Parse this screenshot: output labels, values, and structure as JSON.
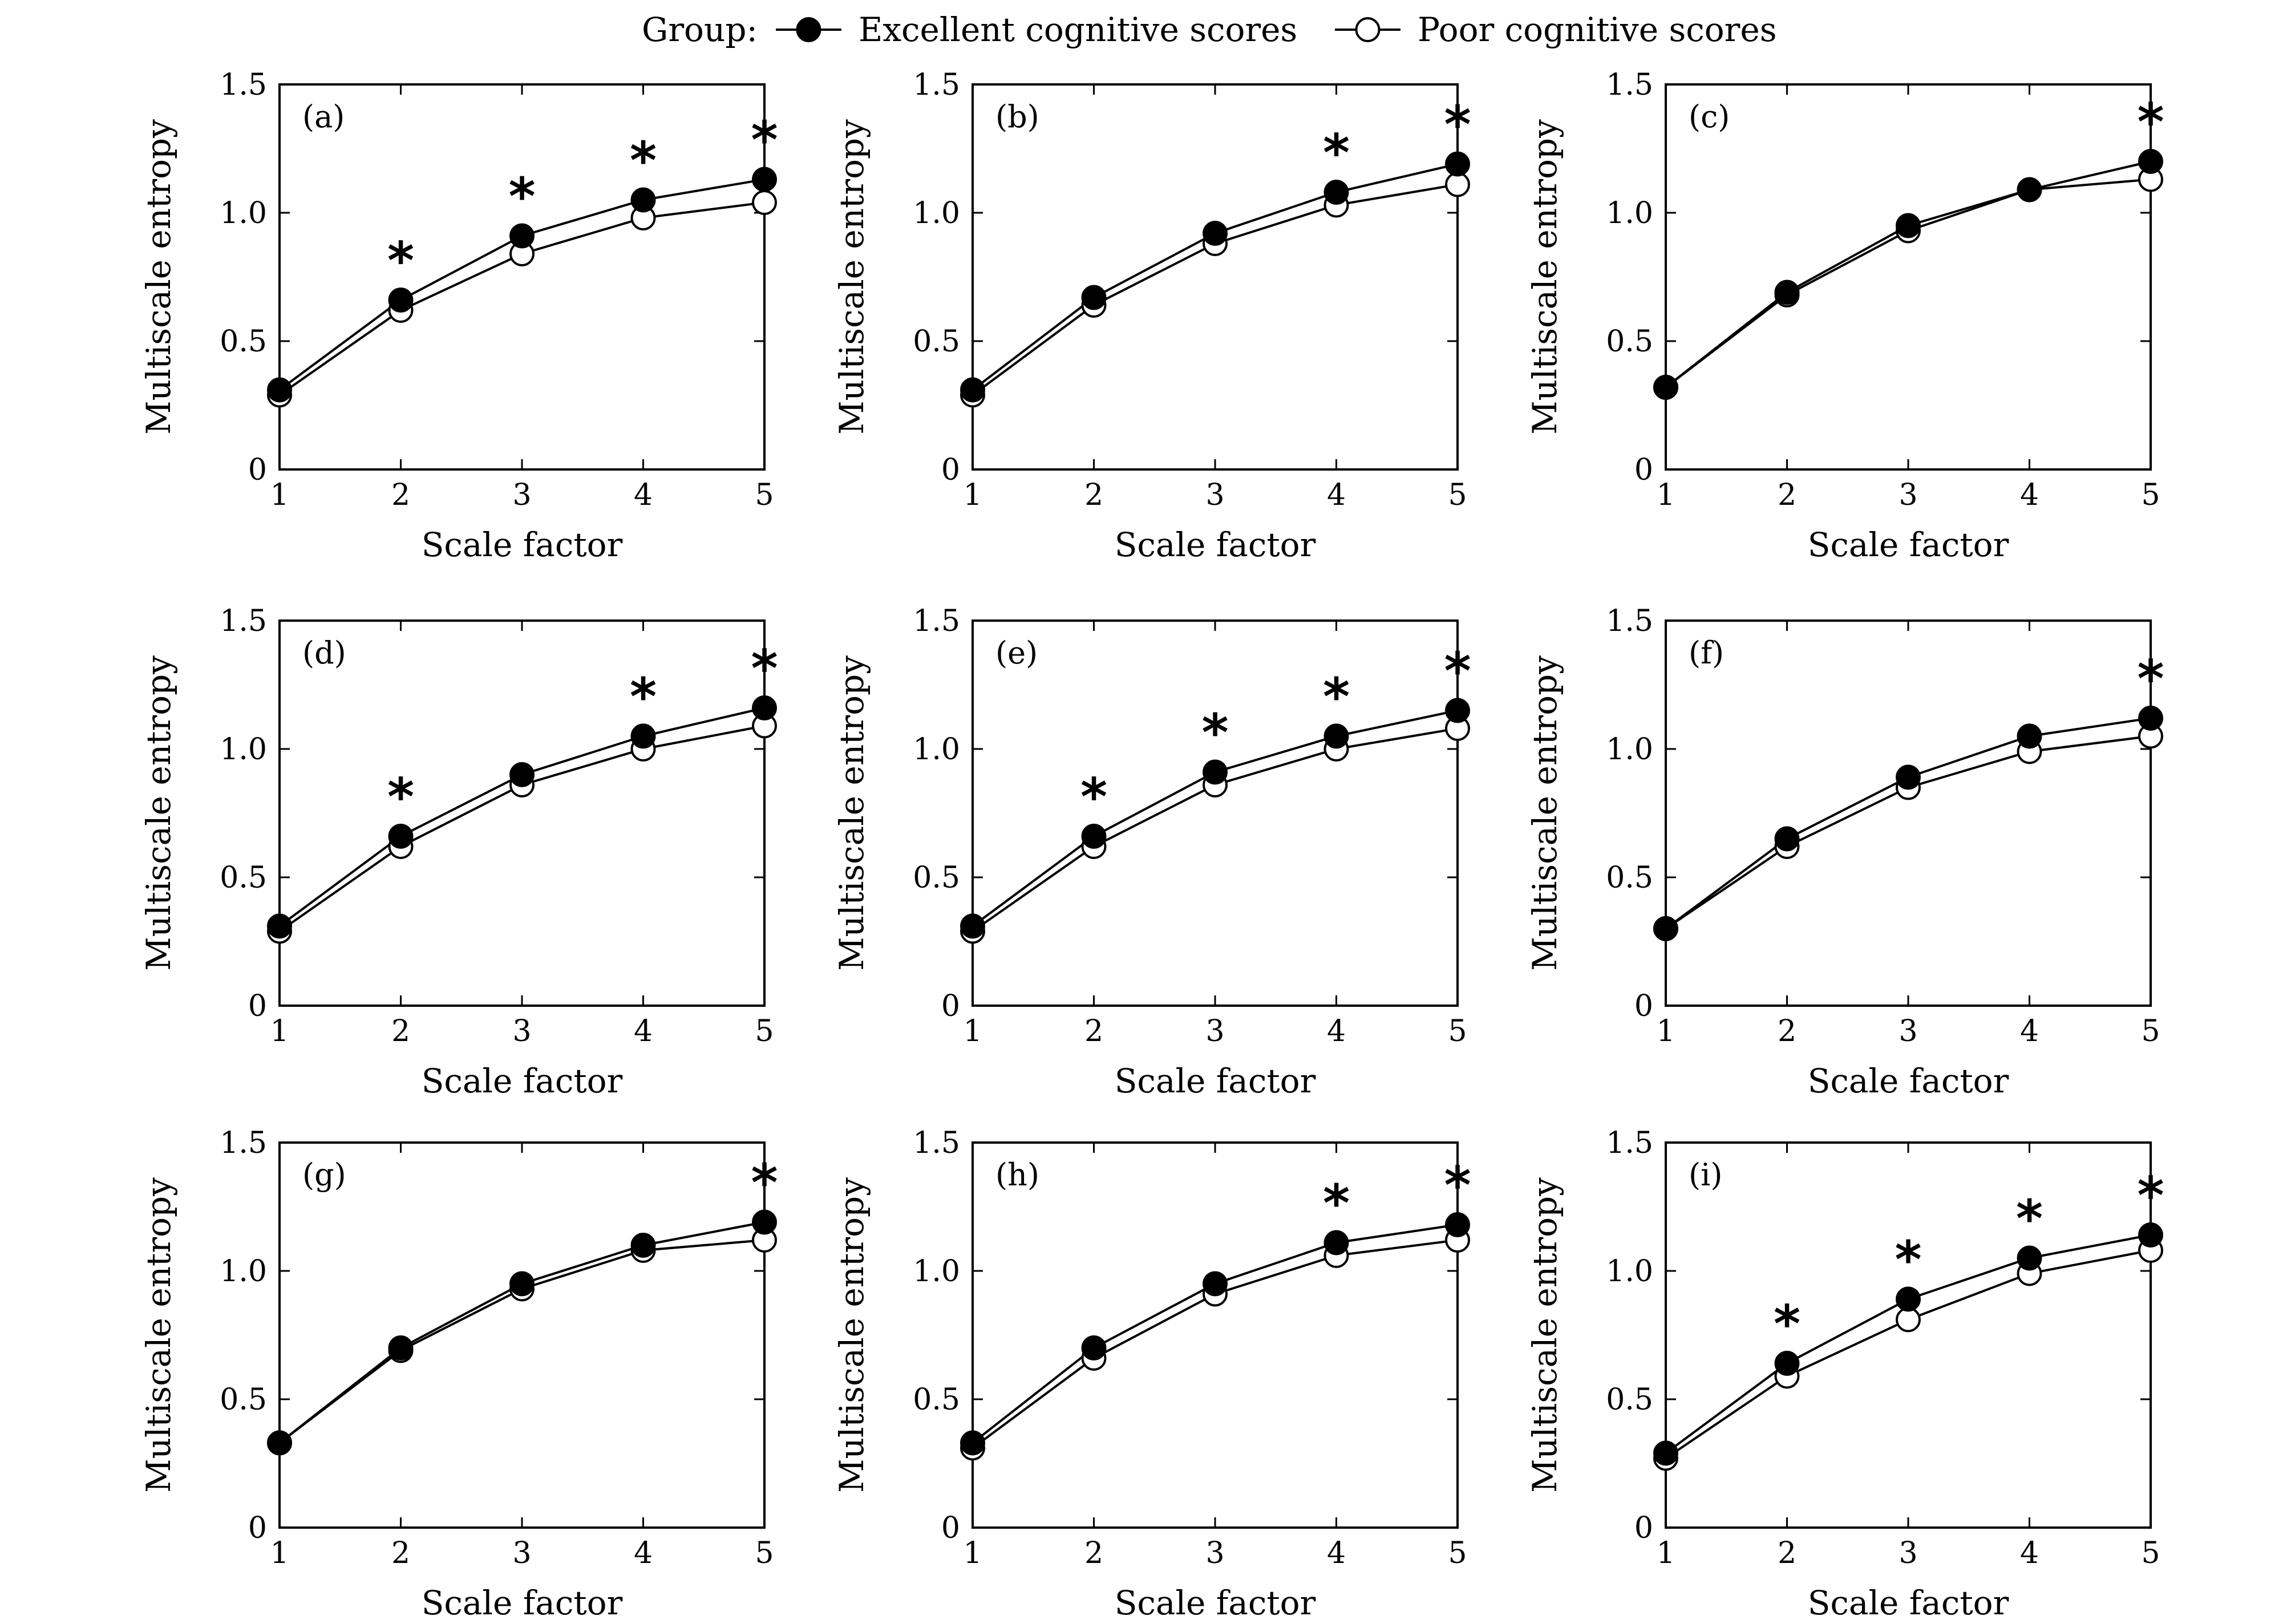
{
  "legend": {
    "title": "Group:",
    "entries": [
      {
        "label": "Excellent cognitive scores",
        "marker": "filled-circle",
        "color": "#000000"
      },
      {
        "label": "Poor cognitive scores",
        "marker": "open-circle",
        "color": "#000000"
      }
    ]
  },
  "chart_data": [
    {
      "type": "line",
      "panel": "(a)",
      "xlabel": "Scale factor",
      "ylabel": "Multiscale entropy",
      "x": [
        1,
        2,
        3,
        4,
        5
      ],
      "xticks": [
        "1",
        "2",
        "3",
        "4",
        "5"
      ],
      "ylim": [
        0,
        1.5
      ],
      "yticks": [
        "0",
        "0.5",
        "1.0",
        "1.5"
      ],
      "series": [
        {
          "name": "Excellent cognitive scores",
          "values": [
            0.31,
            0.66,
            0.91,
            1.05,
            1.13
          ]
        },
        {
          "name": "Poor cognitive scores",
          "values": [
            0.29,
            0.62,
            0.84,
            0.98,
            1.04
          ]
        }
      ],
      "significant": [
        2,
        3,
        4,
        5
      ]
    },
    {
      "type": "line",
      "panel": "(b)",
      "xlabel": "Scale factor",
      "ylabel": "Multiscale entropy",
      "x": [
        1,
        2,
        3,
        4,
        5
      ],
      "xticks": [
        "1",
        "2",
        "3",
        "4",
        "5"
      ],
      "ylim": [
        0,
        1.5
      ],
      "yticks": [
        "0",
        "0.5",
        "1.0",
        "1.5"
      ],
      "series": [
        {
          "name": "Excellent cognitive scores",
          "values": [
            0.31,
            0.67,
            0.92,
            1.08,
            1.19
          ]
        },
        {
          "name": "Poor cognitive scores",
          "values": [
            0.29,
            0.64,
            0.88,
            1.03,
            1.11
          ]
        }
      ],
      "significant": [
        4,
        5
      ]
    },
    {
      "type": "line",
      "panel": "(c)",
      "xlabel": "Scale factor",
      "ylabel": "Multiscale entropy",
      "x": [
        1,
        2,
        3,
        4,
        5
      ],
      "xticks": [
        "1",
        "2",
        "3",
        "4",
        "5"
      ],
      "ylim": [
        0,
        1.5
      ],
      "yticks": [
        "0",
        "0.5",
        "1.0",
        "1.5"
      ],
      "series": [
        {
          "name": "Excellent cognitive scores",
          "values": [
            0.32,
            0.69,
            0.95,
            1.09,
            1.2
          ]
        },
        {
          "name": "Poor cognitive scores",
          "values": [
            0.32,
            0.68,
            0.93,
            1.09,
            1.13
          ]
        }
      ],
      "significant": [
        5
      ]
    },
    {
      "type": "line",
      "panel": "(d)",
      "xlabel": "Scale factor",
      "ylabel": "Multiscale entropy",
      "x": [
        1,
        2,
        3,
        4,
        5
      ],
      "xticks": [
        "1",
        "2",
        "3",
        "4",
        "5"
      ],
      "ylim": [
        0,
        1.5
      ],
      "yticks": [
        "0",
        "0.5",
        "1.0",
        "1.5"
      ],
      "series": [
        {
          "name": "Excellent cognitive scores",
          "values": [
            0.31,
            0.66,
            0.9,
            1.05,
            1.16
          ]
        },
        {
          "name": "Poor cognitive scores",
          "values": [
            0.29,
            0.62,
            0.86,
            1.0,
            1.09
          ]
        }
      ],
      "significant": [
        2,
        4,
        5
      ]
    },
    {
      "type": "line",
      "panel": "(e)",
      "xlabel": "Scale factor",
      "ylabel": "Multiscale entropy",
      "x": [
        1,
        2,
        3,
        4,
        5
      ],
      "xticks": [
        "1",
        "2",
        "3",
        "4",
        "5"
      ],
      "ylim": [
        0,
        1.5
      ],
      "yticks": [
        "0",
        "0.5",
        "1.0",
        "1.5"
      ],
      "series": [
        {
          "name": "Excellent cognitive scores",
          "values": [
            0.31,
            0.66,
            0.91,
            1.05,
            1.15
          ]
        },
        {
          "name": "Poor cognitive scores",
          "values": [
            0.29,
            0.62,
            0.86,
            1.0,
            1.08
          ]
        }
      ],
      "significant": [
        2,
        3,
        4,
        5
      ]
    },
    {
      "type": "line",
      "panel": "(f)",
      "xlabel": "Scale factor",
      "ylabel": "Multiscale entropy",
      "x": [
        1,
        2,
        3,
        4,
        5
      ],
      "xticks": [
        "1",
        "2",
        "3",
        "4",
        "5"
      ],
      "ylim": [
        0,
        1.5
      ],
      "yticks": [
        "0",
        "0.5",
        "1.0",
        "1.5"
      ],
      "series": [
        {
          "name": "Excellent cognitive scores",
          "values": [
            0.3,
            0.65,
            0.89,
            1.05,
            1.12
          ]
        },
        {
          "name": "Poor cognitive scores",
          "values": [
            0.3,
            0.62,
            0.85,
            0.99,
            1.05
          ]
        }
      ],
      "significant": [
        5
      ]
    },
    {
      "type": "line",
      "panel": "(g)",
      "xlabel": "Scale factor",
      "ylabel": "Multiscale entropy",
      "x": [
        1,
        2,
        3,
        4,
        5
      ],
      "xticks": [
        "1",
        "2",
        "3",
        "4",
        "5"
      ],
      "ylim": [
        0,
        1.5
      ],
      "yticks": [
        "0",
        "0.5",
        "1.0",
        "1.5"
      ],
      "series": [
        {
          "name": "Excellent cognitive scores",
          "values": [
            0.33,
            0.7,
            0.95,
            1.1,
            1.19
          ]
        },
        {
          "name": "Poor cognitive scores",
          "values": [
            0.33,
            0.69,
            0.93,
            1.08,
            1.12
          ]
        }
      ],
      "significant": [
        5
      ]
    },
    {
      "type": "line",
      "panel": "(h)",
      "xlabel": "Scale factor",
      "ylabel": "Multiscale entropy",
      "x": [
        1,
        2,
        3,
        4,
        5
      ],
      "xticks": [
        "1",
        "2",
        "3",
        "4",
        "5"
      ],
      "ylim": [
        0,
        1.5
      ],
      "yticks": [
        "0",
        "0.5",
        "1.0",
        "1.5"
      ],
      "series": [
        {
          "name": "Excellent cognitive scores",
          "values": [
            0.33,
            0.7,
            0.95,
            1.11,
            1.18
          ]
        },
        {
          "name": "Poor cognitive scores",
          "values": [
            0.31,
            0.66,
            0.91,
            1.06,
            1.12
          ]
        }
      ],
      "significant": [
        4,
        5
      ]
    },
    {
      "type": "line",
      "panel": "(i)",
      "xlabel": "Scale factor",
      "ylabel": "Multiscale entropy",
      "x": [
        1,
        2,
        3,
        4,
        5
      ],
      "xticks": [
        "1",
        "2",
        "3",
        "4",
        "5"
      ],
      "ylim": [
        0,
        1.5
      ],
      "yticks": [
        "0",
        "0.5",
        "1.0",
        "1.5"
      ],
      "series": [
        {
          "name": "Excellent cognitive scores",
          "values": [
            0.29,
            0.64,
            0.89,
            1.05,
            1.14
          ]
        },
        {
          "name": "Poor cognitive scores",
          "values": [
            0.27,
            0.59,
            0.81,
            0.99,
            1.08
          ]
        }
      ],
      "significant": [
        2,
        3,
        4,
        5
      ]
    }
  ]
}
